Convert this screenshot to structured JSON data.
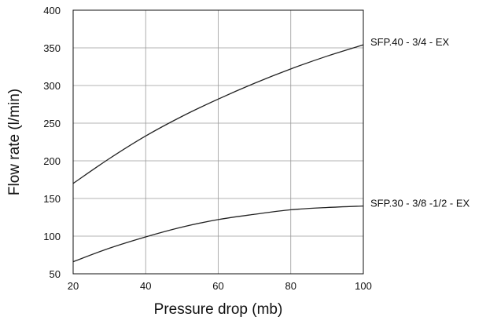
{
  "chart_data": {
    "type": "line",
    "title": "",
    "xlabel": "Pressure drop (mb)",
    "ylabel": "Flow rate (l/min)",
    "xlim": [
      20,
      100
    ],
    "ylim": [
      50,
      400
    ],
    "x_ticks": [
      20,
      40,
      60,
      80,
      100
    ],
    "y_ticks": [
      50,
      100,
      150,
      200,
      250,
      300,
      350,
      400
    ],
    "x_tick_labels": [
      "20",
      "40",
      "60",
      "80",
      "100"
    ],
    "y_tick_labels": [
      "50",
      "100",
      "150",
      "200",
      "250",
      "300",
      "350",
      "400"
    ],
    "grid": true,
    "legend_placement": "inline-right",
    "series": [
      {
        "name": "SFP.40 - 3/4 - EX",
        "x": [
          20,
          30,
          40,
          50,
          60,
          70,
          80,
          90,
          100
        ],
        "y": [
          170,
          203,
          233,
          259,
          282,
          303,
          322,
          339,
          354
        ]
      },
      {
        "name": "SFP.30 - 3/8 -1/2 - EX",
        "x": [
          20,
          30,
          40,
          50,
          60,
          70,
          80,
          90,
          100
        ],
        "y": [
          66,
          84,
          99,
          112,
          122,
          129,
          135,
          138,
          140
        ]
      }
    ]
  }
}
